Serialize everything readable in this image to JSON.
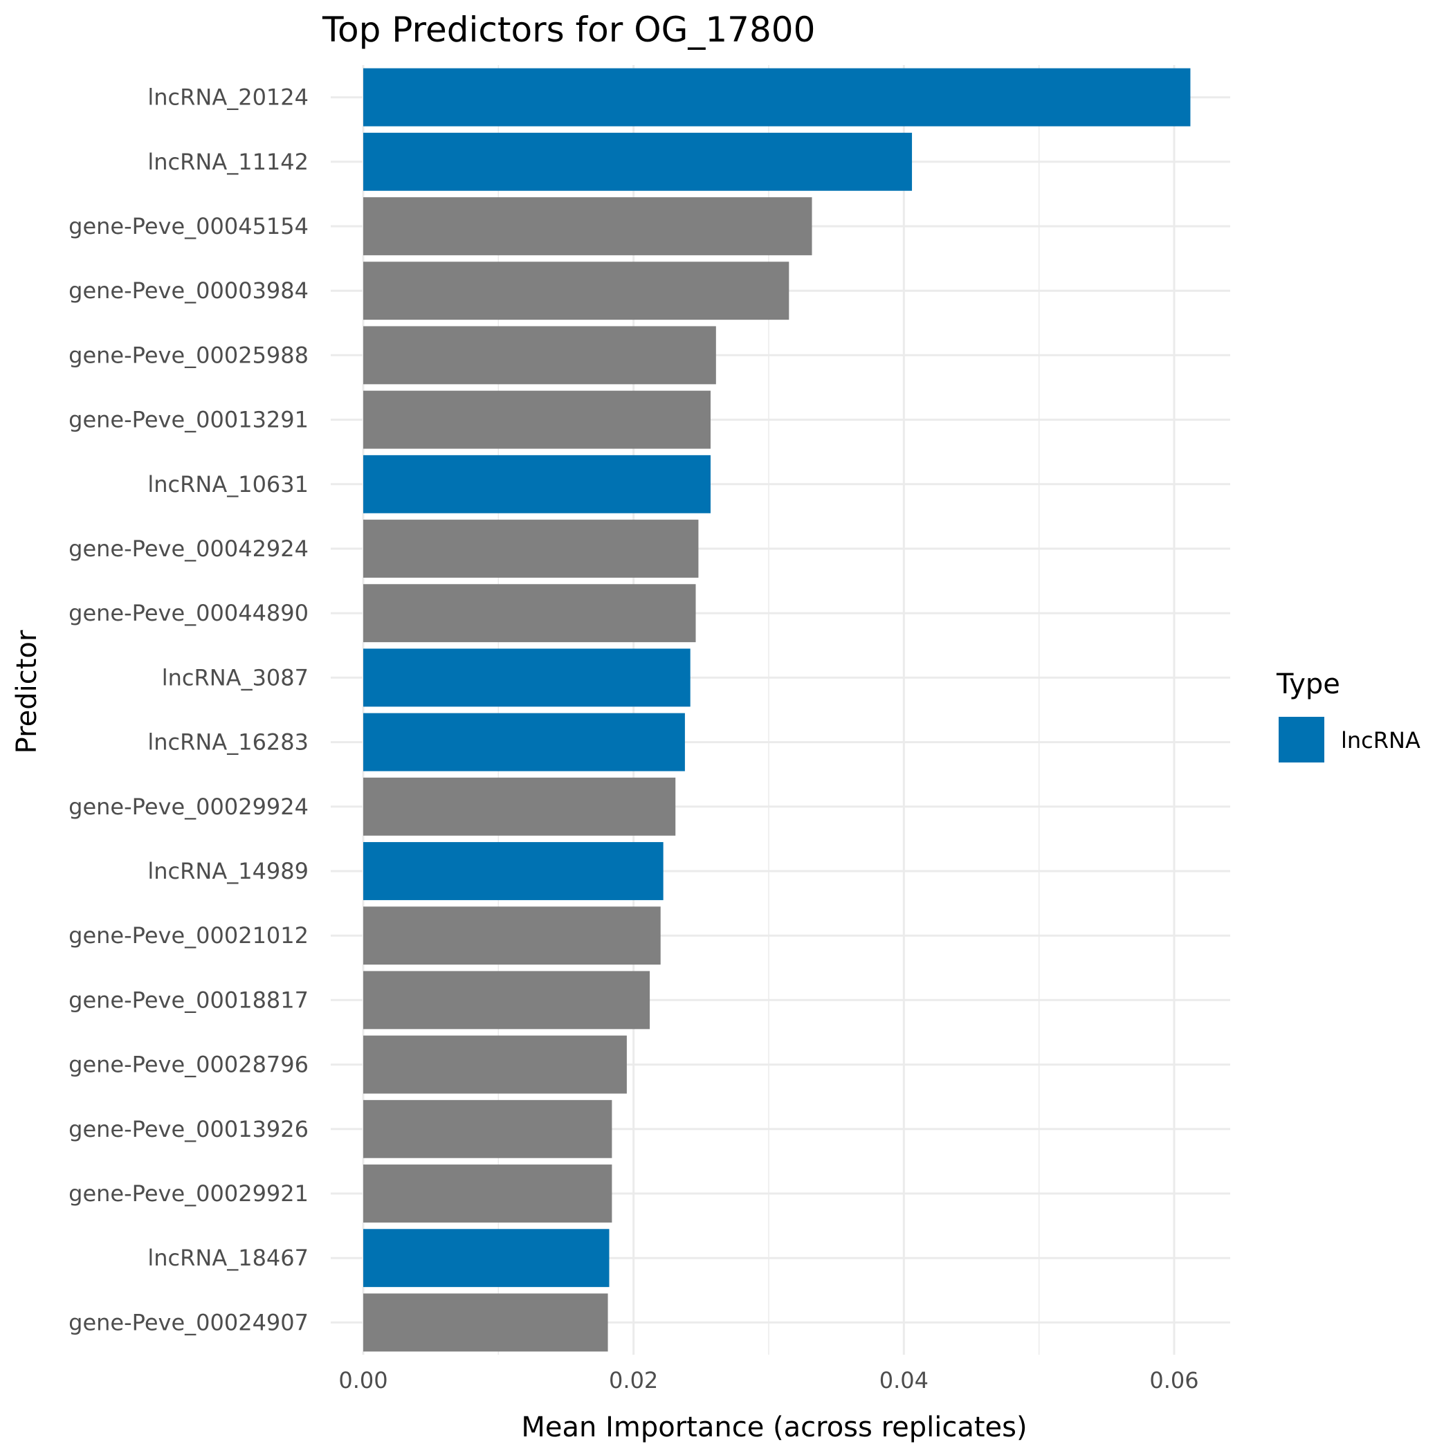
{
  "chart_data": {
    "type": "bar",
    "orientation": "horizontal",
    "title": "Top Predictors for OG_17800",
    "xlabel": "Mean Importance (across replicates)",
    "ylabel": "Predictor",
    "xlim": [
      0,
      0.0645
    ],
    "x_ticks": [
      "0.00",
      "0.02",
      "0.04",
      "0.06"
    ],
    "x_tick_values": [
      0,
      0.02,
      0.04,
      0.06
    ],
    "grid": true,
    "legend": {
      "title": "Type",
      "position": "right",
      "entries": [
        {
          "label": "lncRNA",
          "color": "#0072B2"
        }
      ]
    },
    "colors": {
      "lncRNA": "#0072B2",
      "gene": "#808080"
    },
    "categories": [
      "lncRNA_20124",
      "lncRNA_11142",
      "gene-Peve_00045154",
      "gene-Peve_00003984",
      "gene-Peve_00025988",
      "gene-Peve_00013291",
      "lncRNA_10631",
      "gene-Peve_00042924",
      "gene-Peve_00044890",
      "lncRNA_3087",
      "lncRNA_16283",
      "gene-Peve_00029924",
      "lncRNA_14989",
      "gene-Peve_00021012",
      "gene-Peve_00018817",
      "gene-Peve_00028796",
      "gene-Peve_00013926",
      "gene-Peve_00029921",
      "lncRNA_18467",
      "gene-Peve_00024907"
    ],
    "values": [
      0.0612,
      0.0406,
      0.0332,
      0.0315,
      0.0261,
      0.0257,
      0.0257,
      0.0248,
      0.0246,
      0.0242,
      0.0238,
      0.0231,
      0.0222,
      0.022,
      0.0212,
      0.0195,
      0.0184,
      0.0184,
      0.0182,
      0.0181
    ],
    "types": [
      "lncRNA",
      "lncRNA",
      "gene",
      "gene",
      "gene",
      "gene",
      "lncRNA",
      "gene",
      "gene",
      "lncRNA",
      "lncRNA",
      "gene",
      "lncRNA",
      "gene",
      "gene",
      "gene",
      "gene",
      "gene",
      "lncRNA",
      "gene"
    ]
  }
}
